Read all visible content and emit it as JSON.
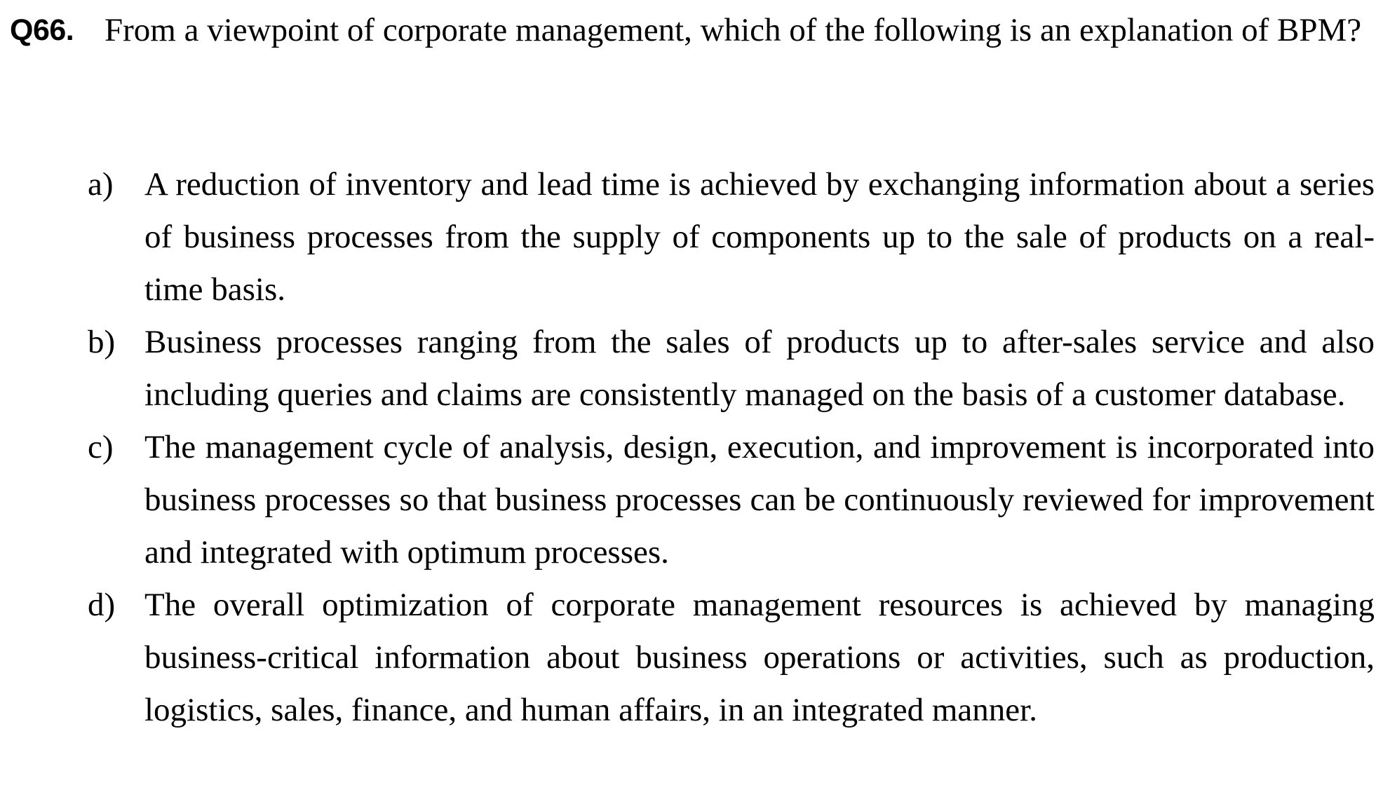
{
  "question": {
    "number": "Q66.",
    "text": "From a viewpoint of corporate management, which of the following is an explanation of BPM?"
  },
  "options": [
    {
      "letter": "a)",
      "text": "A reduction of inventory and lead time is achieved by exchanging information about a series of business processes from the supply of components up to the sale of products on a real-time basis."
    },
    {
      "letter": "b)",
      "text": "Business processes ranging from the sales of products up to after-sales service and also including queries and claims are consistently managed on the basis of a customer database."
    },
    {
      "letter": "c)",
      "text": "The management cycle of analysis, design, execution, and improvement is incorporated into business processes so that business processes can be continuously reviewed for improvement and integrated with optimum processes."
    },
    {
      "letter": "d)",
      "text": "The overall optimization of corporate management resources is achieved by managing business-critical information about business operations or activities, such as production, logistics, sales, finance, and human affairs, in an integrated manner."
    }
  ]
}
